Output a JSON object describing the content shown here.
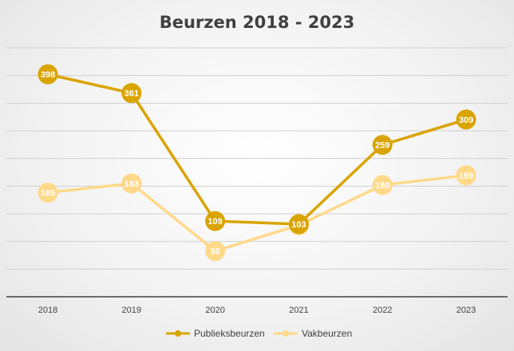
{
  "chart_data": {
    "type": "line",
    "title": "Beurzen 2018 - 2023",
    "x": [
      "2018",
      "2019",
      "2020",
      "2021",
      "2022",
      "2023"
    ],
    "ylim": [
      -40,
      450
    ],
    "grid": true,
    "legend": "bottom",
    "series": [
      {
        "name": "Publieksbeurzen",
        "values": [
          398,
          361,
          109,
          103,
          259,
          309
        ],
        "color": "#d9a400"
      },
      {
        "name": "Vakbeurzen",
        "values": [
          165,
          183,
          50,
          101,
          180,
          199
        ],
        "color": "#ffd98a"
      }
    ]
  }
}
